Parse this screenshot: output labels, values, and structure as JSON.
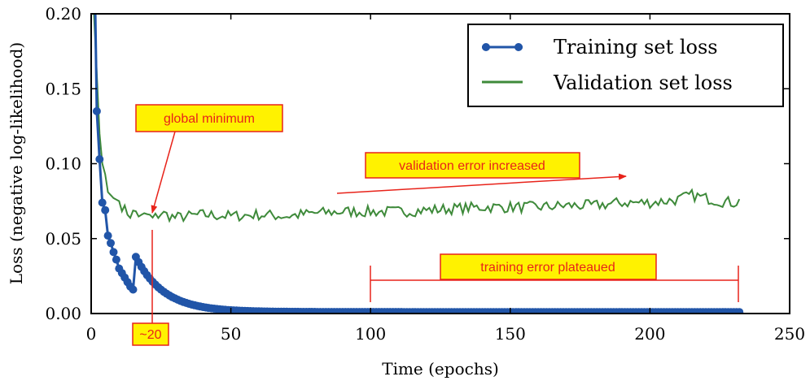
{
  "chart_data": {
    "type": "line",
    "xlabel": "Time (epochs)",
    "ylabel": "Loss (negative log-likelihood)",
    "xlim": [
      0,
      250
    ],
    "ylim": [
      0.0,
      0.2
    ],
    "xticks": [
      0,
      50,
      100,
      150,
      200,
      250
    ],
    "xtick_labels": [
      "0",
      "50",
      "100",
      "150",
      "200",
      "250"
    ],
    "yticks": [
      0.0,
      0.05,
      0.1,
      0.15,
      0.2
    ],
    "ytick_labels": [
      "0.00",
      "0.05",
      "0.10",
      "0.15",
      "0.20"
    ],
    "legend_position": "top-right",
    "colors": {
      "training": "#2155a8",
      "validation": "#3e8a3a",
      "annotation": "#e8231a",
      "annotation_fill": "#fff200"
    },
    "series": [
      {
        "name": "Training set loss",
        "style": "line-with-markers",
        "epochs_start": 1,
        "epochs_end": 232,
        "curve": {
          "model": "a*exp(-b*(x-c))",
          "a": 0.135,
          "b": 0.1,
          "c": 3,
          "values_until_flat": [
            0.135,
            0.103,
            0.074,
            0.069,
            0.052,
            0.047,
            0.041,
            0.036,
            0.03,
            0.027,
            0.024,
            0.021,
            0.018,
            0.016
          ]
        },
        "plateau_value": 0.001
      },
      {
        "name": "Validation set loss",
        "style": "line",
        "epochs_start": 1,
        "epochs_end": 232,
        "points": [
          [
            1,
            0.2
          ],
          [
            2,
            0.16
          ],
          [
            3,
            0.12
          ],
          [
            4,
            0.1
          ],
          [
            5,
            0.093
          ],
          [
            6,
            0.081
          ],
          [
            8,
            0.077
          ],
          [
            10,
            0.075
          ],
          [
            12,
            0.069
          ],
          [
            14,
            0.066
          ],
          [
            16,
            0.068
          ],
          [
            18,
            0.064
          ],
          [
            20,
            0.066
          ],
          [
            22,
            0.063
          ],
          [
            25,
            0.067
          ],
          [
            30,
            0.064
          ],
          [
            40,
            0.066
          ],
          [
            50,
            0.065
          ],
          [
            60,
            0.066
          ],
          [
            70,
            0.065
          ],
          [
            80,
            0.067
          ],
          [
            90,
            0.068
          ],
          [
            100,
            0.068
          ],
          [
            110,
            0.068
          ],
          [
            120,
            0.069
          ],
          [
            130,
            0.07
          ],
          [
            140,
            0.071
          ],
          [
            150,
            0.071
          ],
          [
            160,
            0.071
          ],
          [
            170,
            0.072
          ],
          [
            180,
            0.072
          ],
          [
            190,
            0.074
          ],
          [
            200,
            0.074
          ],
          [
            210,
            0.076
          ],
          [
            215,
            0.079
          ],
          [
            220,
            0.077
          ],
          [
            225,
            0.075
          ],
          [
            230,
            0.074
          ],
          [
            232,
            0.075
          ]
        ]
      }
    ],
    "annotations": [
      {
        "id": "global-minimum",
        "text": "global minimum",
        "target": [
          22,
          0.066
        ]
      },
      {
        "id": "validation-increase",
        "text": "validation error increased",
        "arrow_from": [
          88,
          0.079
        ],
        "arrow_to": [
          192,
          0.091
        ]
      },
      {
        "id": "plateau",
        "text": "training error plateaued",
        "span": [
          100,
          232
        ],
        "y": 0.022
      },
      {
        "id": "min-epoch",
        "text": "~20",
        "x": 22
      }
    ]
  }
}
